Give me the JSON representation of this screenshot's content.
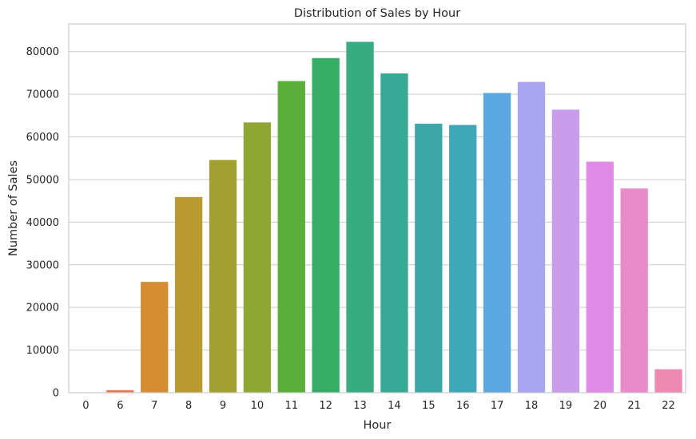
{
  "chart_data": {
    "type": "bar",
    "title": "Distribution of Sales by Hour",
    "xlabel": "Hour",
    "ylabel": "Number of Sales",
    "categories": [
      "0",
      "6",
      "7",
      "8",
      "9",
      "10",
      "11",
      "12",
      "13",
      "14",
      "15",
      "16",
      "17",
      "18",
      "19",
      "20",
      "21",
      "22"
    ],
    "values": [
      100,
      600,
      26000,
      45900,
      54600,
      63400,
      73100,
      78500,
      82300,
      74900,
      63100,
      62800,
      70300,
      72900,
      66400,
      54200,
      47900,
      5500
    ],
    "colors": [
      "#f77189",
      "#f2754f",
      "#d58c32",
      "#b89a31",
      "#a1a031",
      "#8ea731",
      "#5aaf3b",
      "#35ad66",
      "#37ab82",
      "#38a996",
      "#3ba7a6",
      "#3ea7b8",
      "#5ba7e1",
      "#a8a6f0",
      "#c99cec",
      "#e08be7",
      "#e98bca",
      "#ee89b1"
    ],
    "yticks": [
      0,
      10000,
      20000,
      30000,
      40000,
      50000,
      60000,
      70000,
      80000
    ],
    "ylim": [
      0,
      86500
    ],
    "grid": "horizontal",
    "legend": "none"
  }
}
